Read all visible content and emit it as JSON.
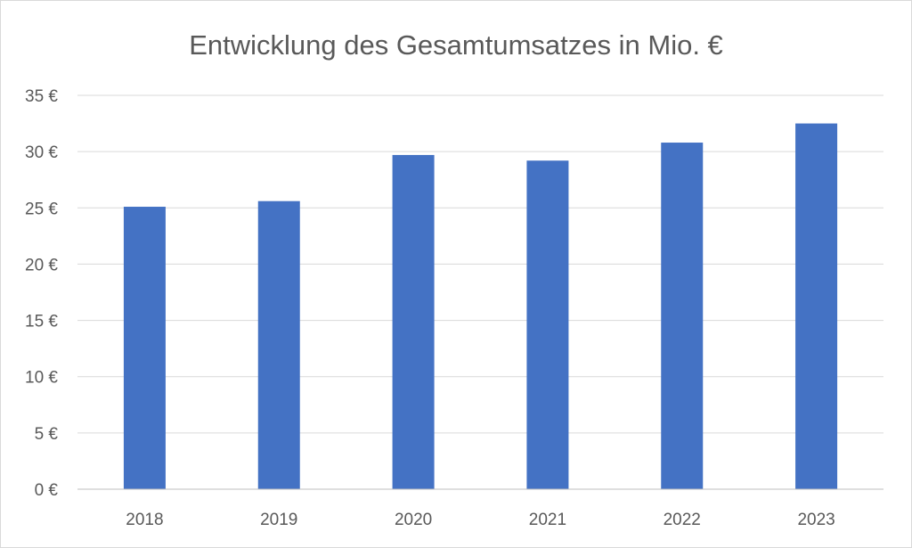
{
  "chart_data": {
    "type": "bar",
    "title": "Entwicklung des Gesamtumsatzes in Mio. €",
    "xlabel": "",
    "ylabel": "",
    "categories": [
      "2018",
      "2019",
      "2020",
      "2021",
      "2022",
      "2023"
    ],
    "series": [
      {
        "values": [
          25.1,
          25.6,
          29.7,
          29.2,
          30.8,
          32.5
        ],
        "color": "#4472C4"
      }
    ],
    "ylim": [
      0,
      35
    ],
    "yticks": [
      0,
      5,
      10,
      15,
      20,
      25,
      30,
      35
    ],
    "ytick_labels": [
      "0 €",
      "5 €",
      "10 €",
      "15 €",
      "20 €",
      "25 €",
      "30 €",
      "35 €"
    ],
    "grid": true,
    "legend": "none",
    "gridline_color": "#d9d9d9",
    "axis_color": "#bfbfbf",
    "text_color": "#595959"
  }
}
